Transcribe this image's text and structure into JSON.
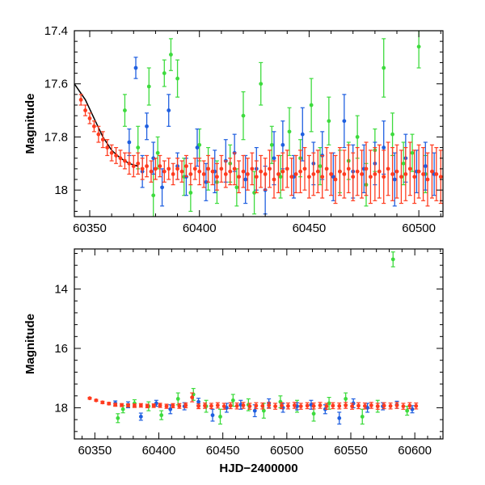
{
  "chart_data": [
    {
      "panel": "top",
      "type": "scatter",
      "title": "",
      "xlabel": "",
      "ylabel": "Magnitude",
      "xlim": [
        60343,
        60511
      ],
      "ylim": [
        17.4,
        18.1
      ],
      "y_inverted": true,
      "xticks": [
        60350,
        60400,
        60450,
        60500
      ],
      "yticks": [
        17.4,
        17.6,
        17.8,
        18
      ],
      "tick_labels_x": [
        "60350",
        "60400",
        "60450",
        "60500"
      ],
      "tick_labels_y": [
        "17.4",
        "17.6",
        "17.8",
        "18"
      ],
      "grid": false,
      "legend": "none",
      "colors": {
        "red": "#ff3b1f",
        "blue": "#1f5fe0",
        "green": "#3ddb3d",
        "model": "#000000"
      },
      "model_curve": {
        "x": [
          60343,
          60348,
          60352,
          60356,
          60360,
          60364,
          60368,
          60372
        ],
        "y": [
          17.6,
          17.66,
          17.73,
          17.8,
          17.85,
          17.88,
          17.9,
          17.91
        ]
      },
      "series": [
        {
          "color": "green",
          "x": [
            60366,
            60372,
            60377,
            60379,
            60381,
            60384,
            60387,
            60390,
            60393,
            60396,
            60400,
            60404,
            60408,
            60414,
            60417,
            60420,
            60425,
            60428,
            60433,
            60437,
            60441,
            60446,
            60451,
            60455,
            60459,
            60464,
            60468,
            60472,
            60476,
            60480,
            60484,
            60488,
            60493,
            60497,
            60500,
            60503
          ],
          "y": [
            17.7,
            17.84,
            17.61,
            18.02,
            17.86,
            17.56,
            17.49,
            17.58,
            17.95,
            18.01,
            17.83,
            17.92,
            17.97,
            17.9,
            17.99,
            17.72,
            18.01,
            17.6,
            17.83,
            17.95,
            17.78,
            17.88,
            17.68,
            17.91,
            17.74,
            17.93,
            17.89,
            17.8,
            17.98,
            17.85,
            17.54,
            17.79,
            17.9,
            17.86,
            17.46,
            17.94
          ],
          "err": [
            0.06,
            0.08,
            0.07,
            0.08,
            0.06,
            0.05,
            0.06,
            0.07,
            0.07,
            0.07,
            0.06,
            0.08,
            0.08,
            0.07,
            0.07,
            0.09,
            0.08,
            0.08,
            0.07,
            0.08,
            0.09,
            0.07,
            0.1,
            0.07,
            0.09,
            0.08,
            0.07,
            0.08,
            0.08,
            0.08,
            0.11,
            0.08,
            0.08,
            0.07,
            0.08,
            0.07
          ]
        },
        {
          "color": "blue",
          "x": [
            60368,
            60371,
            60374,
            60376,
            60379,
            60383,
            60386,
            60390,
            60394,
            60399,
            60403,
            60407,
            60412,
            60416,
            60421,
            60426,
            60430,
            60434,
            60438,
            60443,
            60447,
            60452,
            60456,
            60461,
            60466,
            60470,
            60475,
            60480,
            60484,
            60489,
            60494,
            60499,
            60503,
            60507
          ],
          "y": [
            17.82,
            17.54,
            17.93,
            17.76,
            17.88,
            17.99,
            17.7,
            17.91,
            17.95,
            17.84,
            17.97,
            17.93,
            17.89,
            17.86,
            17.96,
            17.92,
            18.0,
            17.88,
            17.83,
            17.95,
            17.79,
            17.9,
            17.87,
            17.95,
            17.74,
            17.93,
            17.92,
            17.9,
            17.84,
            17.96,
            17.88,
            17.93,
            17.91,
            17.94
          ],
          "err": [
            0.05,
            0.04,
            0.06,
            0.05,
            0.06,
            0.07,
            0.06,
            0.05,
            0.07,
            0.07,
            0.07,
            0.08,
            0.08,
            0.07,
            0.09,
            0.08,
            0.09,
            0.1,
            0.09,
            0.08,
            0.1,
            0.08,
            0.09,
            0.09,
            0.1,
            0.1,
            0.09,
            0.08,
            0.1,
            0.1,
            0.09,
            0.08,
            0.09,
            0.08
          ]
        },
        {
          "color": "red",
          "x": [
            60346,
            60348,
            60350,
            60352,
            60354,
            60356,
            60358,
            60360,
            60362,
            60364,
            60366,
            60368,
            60370,
            60372,
            60374,
            60376,
            60378,
            60380,
            60382,
            60384,
            60386,
            60388,
            60390,
            60392,
            60394,
            60396,
            60398,
            60400,
            60402,
            60404,
            60406,
            60408,
            60410,
            60412,
            60414,
            60416,
            60418,
            60420,
            60422,
            60424,
            60426,
            60428,
            60430,
            60432,
            60434,
            60436,
            60438,
            60440,
            60442,
            60444,
            60446,
            60448,
            60450,
            60452,
            60454,
            60456,
            60458,
            60460,
            60462,
            60464,
            60466,
            60468,
            60470,
            60472,
            60474,
            60476,
            60478,
            60480,
            60482,
            60484,
            60486,
            60488,
            60490,
            60492,
            60494,
            60496,
            60498,
            60500,
            60502,
            60504,
            60506,
            60508,
            60510
          ],
          "y": [
            17.66,
            17.7,
            17.73,
            17.76,
            17.79,
            17.81,
            17.84,
            17.86,
            17.87,
            17.88,
            17.89,
            17.9,
            17.91,
            17.9,
            17.92,
            17.91,
            17.93,
            17.92,
            17.91,
            17.93,
            17.92,
            17.94,
            17.92,
            17.93,
            17.91,
            17.94,
            17.92,
            17.93,
            17.94,
            17.92,
            17.93,
            17.95,
            17.92,
            17.94,
            17.93,
            17.92,
            17.95,
            17.93,
            17.94,
            17.92,
            17.95,
            17.93,
            17.94,
            17.92,
            17.96,
            17.94,
            17.93,
            17.92,
            17.95,
            17.94,
            17.93,
            17.92,
            17.95,
            17.94,
            17.93,
            17.95,
            17.92,
            17.94,
            17.96,
            17.93,
            17.94,
            17.92,
            17.95,
            17.93,
            17.94,
            17.92,
            17.95,
            17.94,
            17.93,
            17.95,
            17.92,
            17.94,
            17.93,
            17.95,
            17.94,
            17.92,
            17.95,
            17.93,
            17.94,
            17.96,
            17.93,
            17.94,
            17.95
          ],
          "err": [
            0.02,
            0.02,
            0.02,
            0.02,
            0.03,
            0.03,
            0.03,
            0.03,
            0.03,
            0.03,
            0.03,
            0.04,
            0.04,
            0.04,
            0.04,
            0.04,
            0.04,
            0.04,
            0.04,
            0.04,
            0.04,
            0.04,
            0.04,
            0.04,
            0.04,
            0.04,
            0.04,
            0.05,
            0.05,
            0.05,
            0.05,
            0.05,
            0.05,
            0.05,
            0.05,
            0.06,
            0.06,
            0.06,
            0.06,
            0.06,
            0.06,
            0.06,
            0.06,
            0.07,
            0.07,
            0.07,
            0.07,
            0.07,
            0.07,
            0.07,
            0.08,
            0.08,
            0.08,
            0.08,
            0.08,
            0.08,
            0.08,
            0.08,
            0.09,
            0.09,
            0.09,
            0.09,
            0.09,
            0.09,
            0.09,
            0.1,
            0.1,
            0.1,
            0.1,
            0.1,
            0.1,
            0.1,
            0.1,
            0.1,
            0.1,
            0.1,
            0.1,
            0.1,
            0.1,
            0.1,
            0.1,
            0.1,
            0.1
          ]
        }
      ]
    },
    {
      "panel": "bottom",
      "type": "scatter",
      "title": "",
      "xlabel": "HJD−2400000",
      "ylabel": "Magnitude",
      "xlim": [
        60334,
        60622
      ],
      "ylim": [
        12.65,
        19.05
      ],
      "y_inverted": true,
      "xticks": [
        60350,
        60400,
        60450,
        60500,
        60550,
        60600
      ],
      "yticks": [
        14,
        16,
        18
      ],
      "tick_labels_x": [
        "60350",
        "60400",
        "60450",
        "60500",
        "60550",
        "60600"
      ],
      "tick_labels_y": [
        "14",
        "16",
        "18"
      ],
      "grid": false,
      "legend": "none",
      "colors": {
        "red": "#ff3b1f",
        "blue": "#1f5fe0",
        "green": "#3ddb3d"
      },
      "series": [
        {
          "color": "green",
          "x": [
            60368,
            60372,
            60381,
            60392,
            60402,
            60415,
            60427,
            60437,
            60448,
            60458,
            60470,
            60482,
            60495,
            60508,
            60521,
            60533,
            60546,
            60559,
            60571,
            60583,
            60594
          ],
          "y": [
            18.35,
            18.05,
            17.85,
            17.95,
            18.25,
            17.7,
            17.55,
            17.95,
            18.3,
            17.75,
            17.9,
            18.1,
            17.8,
            17.95,
            18.2,
            17.85,
            17.7,
            18.3,
            17.95,
            13.0,
            18.1
          ],
          "err": [
            0.15,
            0.12,
            0.12,
            0.15,
            0.15,
            0.2,
            0.2,
            0.2,
            0.25,
            0.2,
            0.2,
            0.25,
            0.2,
            0.2,
            0.25,
            0.2,
            0.2,
            0.25,
            0.2,
            0.25,
            0.15
          ]
        },
        {
          "color": "blue",
          "x": [
            60366,
            60376,
            60386,
            60398,
            60409,
            60420,
            60431,
            60442,
            60453,
            60464,
            60475,
            60486,
            60497,
            60508,
            60519,
            60530,
            60541,
            60552,
            60563,
            60575,
            60586,
            60598
          ],
          "y": [
            17.85,
            17.9,
            18.3,
            17.85,
            18.05,
            17.95,
            17.8,
            18.25,
            18.0,
            17.9,
            18.1,
            17.85,
            18.0,
            17.95,
            17.9,
            18.05,
            18.35,
            17.85,
            18.0,
            17.95,
            17.9,
            18.05
          ],
          "err": [
            0.08,
            0.1,
            0.12,
            0.1,
            0.15,
            0.12,
            0.12,
            0.2,
            0.15,
            0.15,
            0.2,
            0.15,
            0.15,
            0.12,
            0.15,
            0.15,
            0.2,
            0.15,
            0.15,
            0.12,
            0.12,
            0.12
          ]
        },
        {
          "color": "red",
          "x": [
            60346,
            60351,
            60356,
            60361,
            60366,
            60371,
            60376,
            60381,
            60386,
            60391,
            60396,
            60401,
            60406,
            60411,
            60416,
            60421,
            60426,
            60431,
            60436,
            60441,
            60446,
            60451,
            60456,
            60461,
            60466,
            60471,
            60476,
            60481,
            60486,
            60491,
            60496,
            60501,
            60506,
            60511,
            60516,
            60521,
            60526,
            60531,
            60536,
            60541,
            60546,
            60551,
            60556,
            60561,
            60566,
            60571,
            60576,
            60581,
            60586,
            60591,
            60596,
            60601
          ],
          "y": [
            17.68,
            17.75,
            17.82,
            17.86,
            17.9,
            17.91,
            17.92,
            17.93,
            17.92,
            17.94,
            17.93,
            17.92,
            17.95,
            17.93,
            17.94,
            17.92,
            17.65,
            17.95,
            17.93,
            17.94,
            17.92,
            17.95,
            17.93,
            17.94,
            17.92,
            17.95,
            17.93,
            17.94,
            17.92,
            17.95,
            17.93,
            17.94,
            17.92,
            17.95,
            17.93,
            17.94,
            17.92,
            17.95,
            17.93,
            17.94,
            17.92,
            17.95,
            17.93,
            17.94,
            17.92,
            17.95,
            17.93,
            17.94,
            17.92,
            17.95,
            17.93,
            17.94
          ],
          "err": [
            0.03,
            0.03,
            0.04,
            0.04,
            0.05,
            0.05,
            0.05,
            0.06,
            0.06,
            0.06,
            0.06,
            0.07,
            0.07,
            0.07,
            0.08,
            0.08,
            0.15,
            0.08,
            0.09,
            0.09,
            0.09,
            0.1,
            0.1,
            0.1,
            0.1,
            0.1,
            0.1,
            0.1,
            0.1,
            0.1,
            0.1,
            0.1,
            0.1,
            0.1,
            0.1,
            0.1,
            0.1,
            0.1,
            0.1,
            0.1,
            0.1,
            0.1,
            0.1,
            0.1,
            0.1,
            0.1,
            0.1,
            0.1,
            0.1,
            0.1,
            0.1,
            0.1
          ]
        }
      ]
    }
  ]
}
